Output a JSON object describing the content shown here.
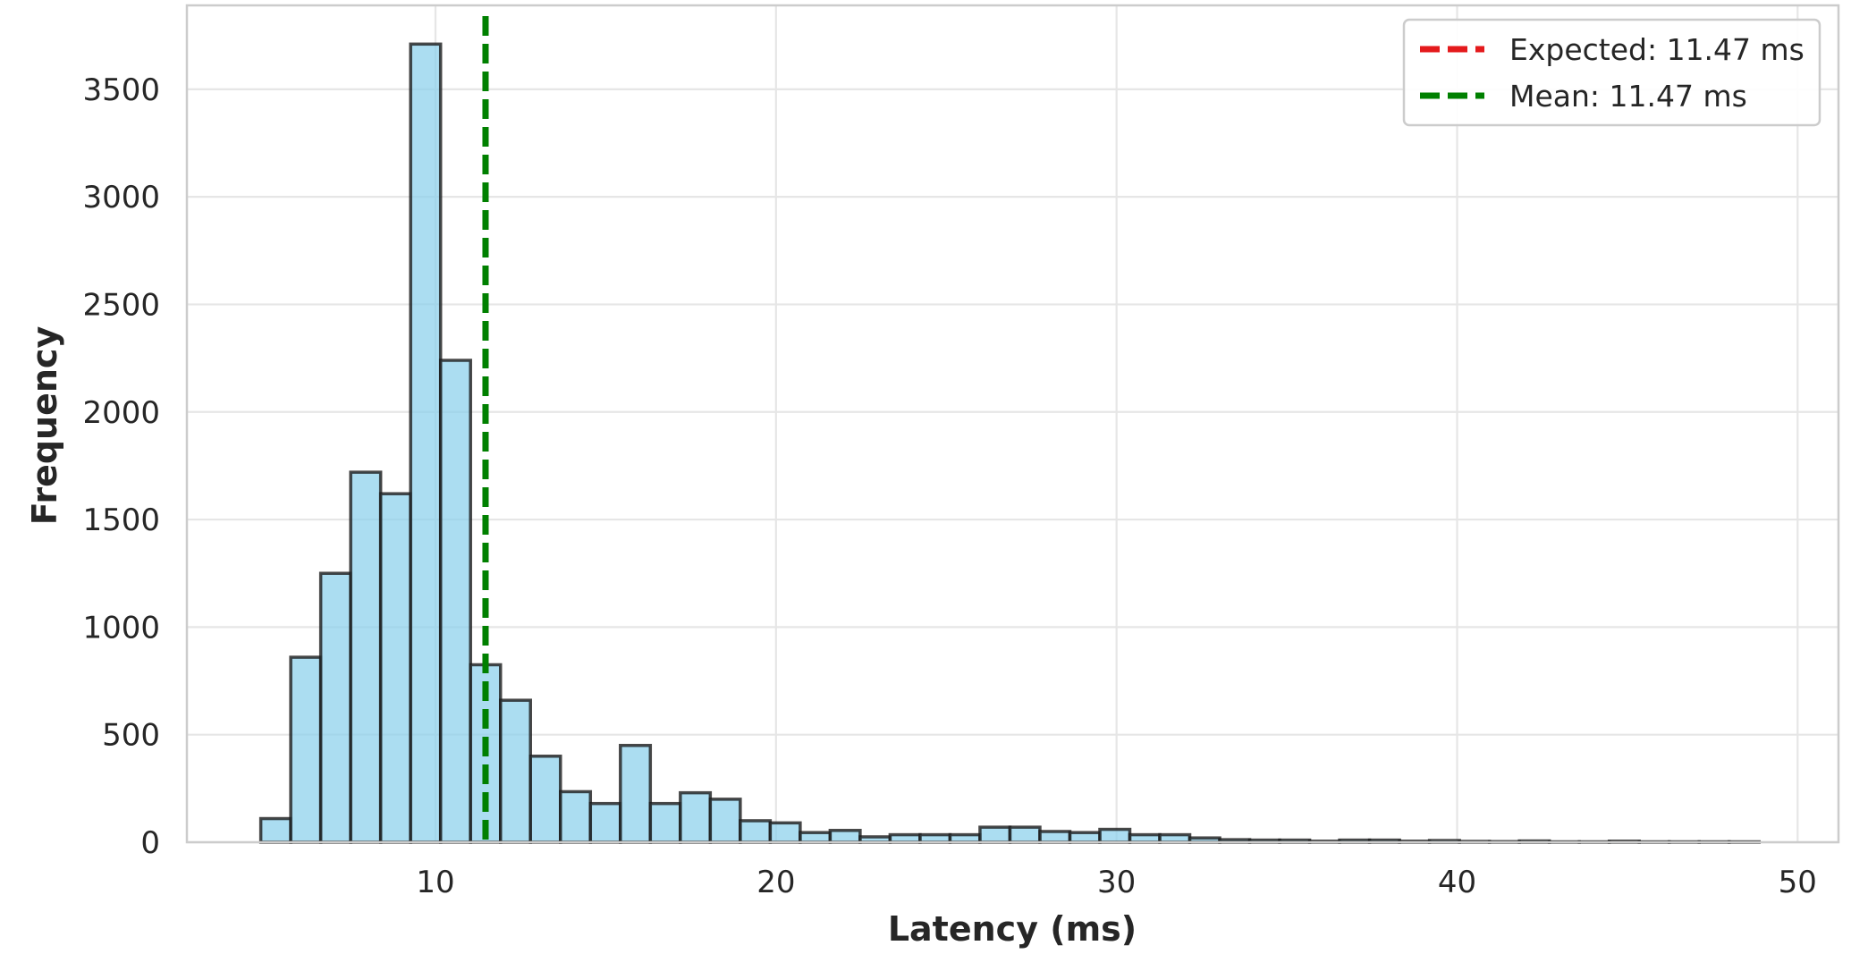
{
  "chart_data": {
    "type": "bar",
    "subtype": "histogram",
    "xlabel": "Latency (ms)",
    "ylabel": "Frequency",
    "xlim": [
      2.7,
      51.2
    ],
    "ylim": [
      0,
      3890
    ],
    "xticks": [
      10,
      20,
      30,
      40,
      50
    ],
    "yticks": [
      0,
      500,
      1000,
      1500,
      2000,
      2500,
      3000,
      3500
    ],
    "grid": true,
    "bin_start": 4.87,
    "bin_width": 0.88,
    "counts": [
      110,
      860,
      1250,
      1720,
      1620,
      3710,
      2240,
      825,
      660,
      400,
      235,
      180,
      450,
      180,
      230,
      200,
      100,
      90,
      45,
      55,
      25,
      35,
      35,
      35,
      70,
      70,
      50,
      45,
      60,
      35,
      35,
      20,
      12,
      10,
      10,
      5,
      10,
      10,
      5,
      8,
      4,
      3,
      6,
      2,
      2,
      5,
      2,
      2,
      2,
      2
    ],
    "bar_color": "#87ceeb",
    "bar_edge_color": "#1a1a1a",
    "vlines": [
      {
        "name": "Expected: 11.47 ms",
        "x": 11.47,
        "color": "#e41a1c",
        "style": "dashed"
      },
      {
        "name": "Mean: 11.47 ms",
        "x": 11.47,
        "color": "#008000",
        "style": "dashed"
      }
    ],
    "legend": {
      "position": "top-right",
      "entries": [
        {
          "label": "Expected: 11.47 ms",
          "color": "#e41a1c"
        },
        {
          "label": "Mean: 11.47 ms",
          "color": "#008000"
        }
      ]
    }
  }
}
